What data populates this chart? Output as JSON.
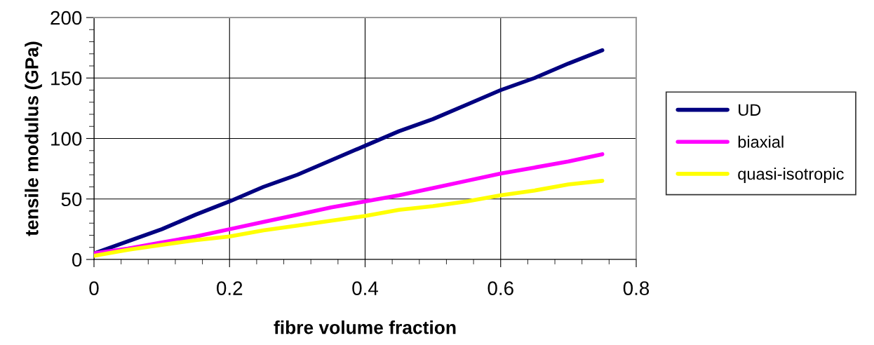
{
  "chart_data": {
    "type": "line",
    "xlabel": "fibre volume fraction",
    "ylabel": "tensile modulus (GPa)",
    "x": [
      0,
      0.05,
      0.1,
      0.15,
      0.2,
      0.25,
      0.3,
      0.35,
      0.4,
      0.45,
      0.5,
      0.55,
      0.6,
      0.65,
      0.7,
      0.75
    ],
    "series": [
      {
        "name": "UD",
        "color": "#000080",
        "values": [
          5,
          15,
          25,
          37,
          48,
          60,
          70,
          82,
          94,
          106,
          116,
          128,
          140,
          150,
          162,
          173
        ]
      },
      {
        "name": "biaxial",
        "color": "#ff00ff",
        "values": [
          5,
          9,
          14,
          19,
          25,
          31,
          37,
          43,
          48,
          53,
          59,
          65,
          71,
          76,
          81,
          87
        ]
      },
      {
        "name": "quasi-isotropic",
        "color": "#ffff00",
        "values": [
          3,
          8,
          12,
          16,
          19,
          24,
          28,
          32,
          36,
          41,
          44,
          48,
          53,
          57,
          62,
          65
        ]
      }
    ],
    "xlim": [
      0,
      0.8
    ],
    "xticks": [
      0,
      {
        "value": 0.04,
        "label": null
      },
      {
        "value": 0.08,
        "label": null
      },
      {
        "value": 0.12,
        "label": null
      },
      {
        "value": 0.16,
        "label": null
      },
      0.2,
      {
        "value": 0.24,
        "label": null
      },
      {
        "value": 0.28,
        "label": null
      },
      {
        "value": 0.32,
        "label": null
      },
      {
        "value": 0.36,
        "label": null
      },
      0.4,
      {
        "value": 0.44,
        "label": null
      },
      {
        "value": 0.48,
        "label": null
      },
      {
        "value": 0.52,
        "label": null
      },
      {
        "value": 0.56,
        "label": null
      },
      0.6,
      {
        "value": 0.64,
        "label": null
      },
      {
        "value": 0.68,
        "label": null
      },
      {
        "value": 0.72,
        "label": null
      },
      {
        "value": 0.76,
        "label": null
      },
      0.8
    ],
    "ylim": [
      0,
      200
    ],
    "yticks": [
      0,
      {
        "value": 10,
        "label": null
      },
      {
        "value": 20,
        "label": null
      },
      {
        "value": 30,
        "label": null
      },
      {
        "value": 40,
        "label": null
      },
      50,
      {
        "value": 60,
        "label": null
      },
      {
        "value": 70,
        "label": null
      },
      {
        "value": 80,
        "label": null
      },
      {
        "value": 90,
        "label": null
      },
      100,
      {
        "value": 110,
        "label": null
      },
      {
        "value": 120,
        "label": null
      },
      {
        "value": 130,
        "label": null
      },
      {
        "value": 140,
        "label": null
      },
      150,
      {
        "value": 160,
        "label": null
      },
      {
        "value": 170,
        "label": null
      },
      {
        "value": 180,
        "label": null
      },
      {
        "value": 190,
        "label": null
      },
      200
    ],
    "grid": true,
    "legend": "right",
    "marker": "none",
    "line_style": "solid"
  }
}
